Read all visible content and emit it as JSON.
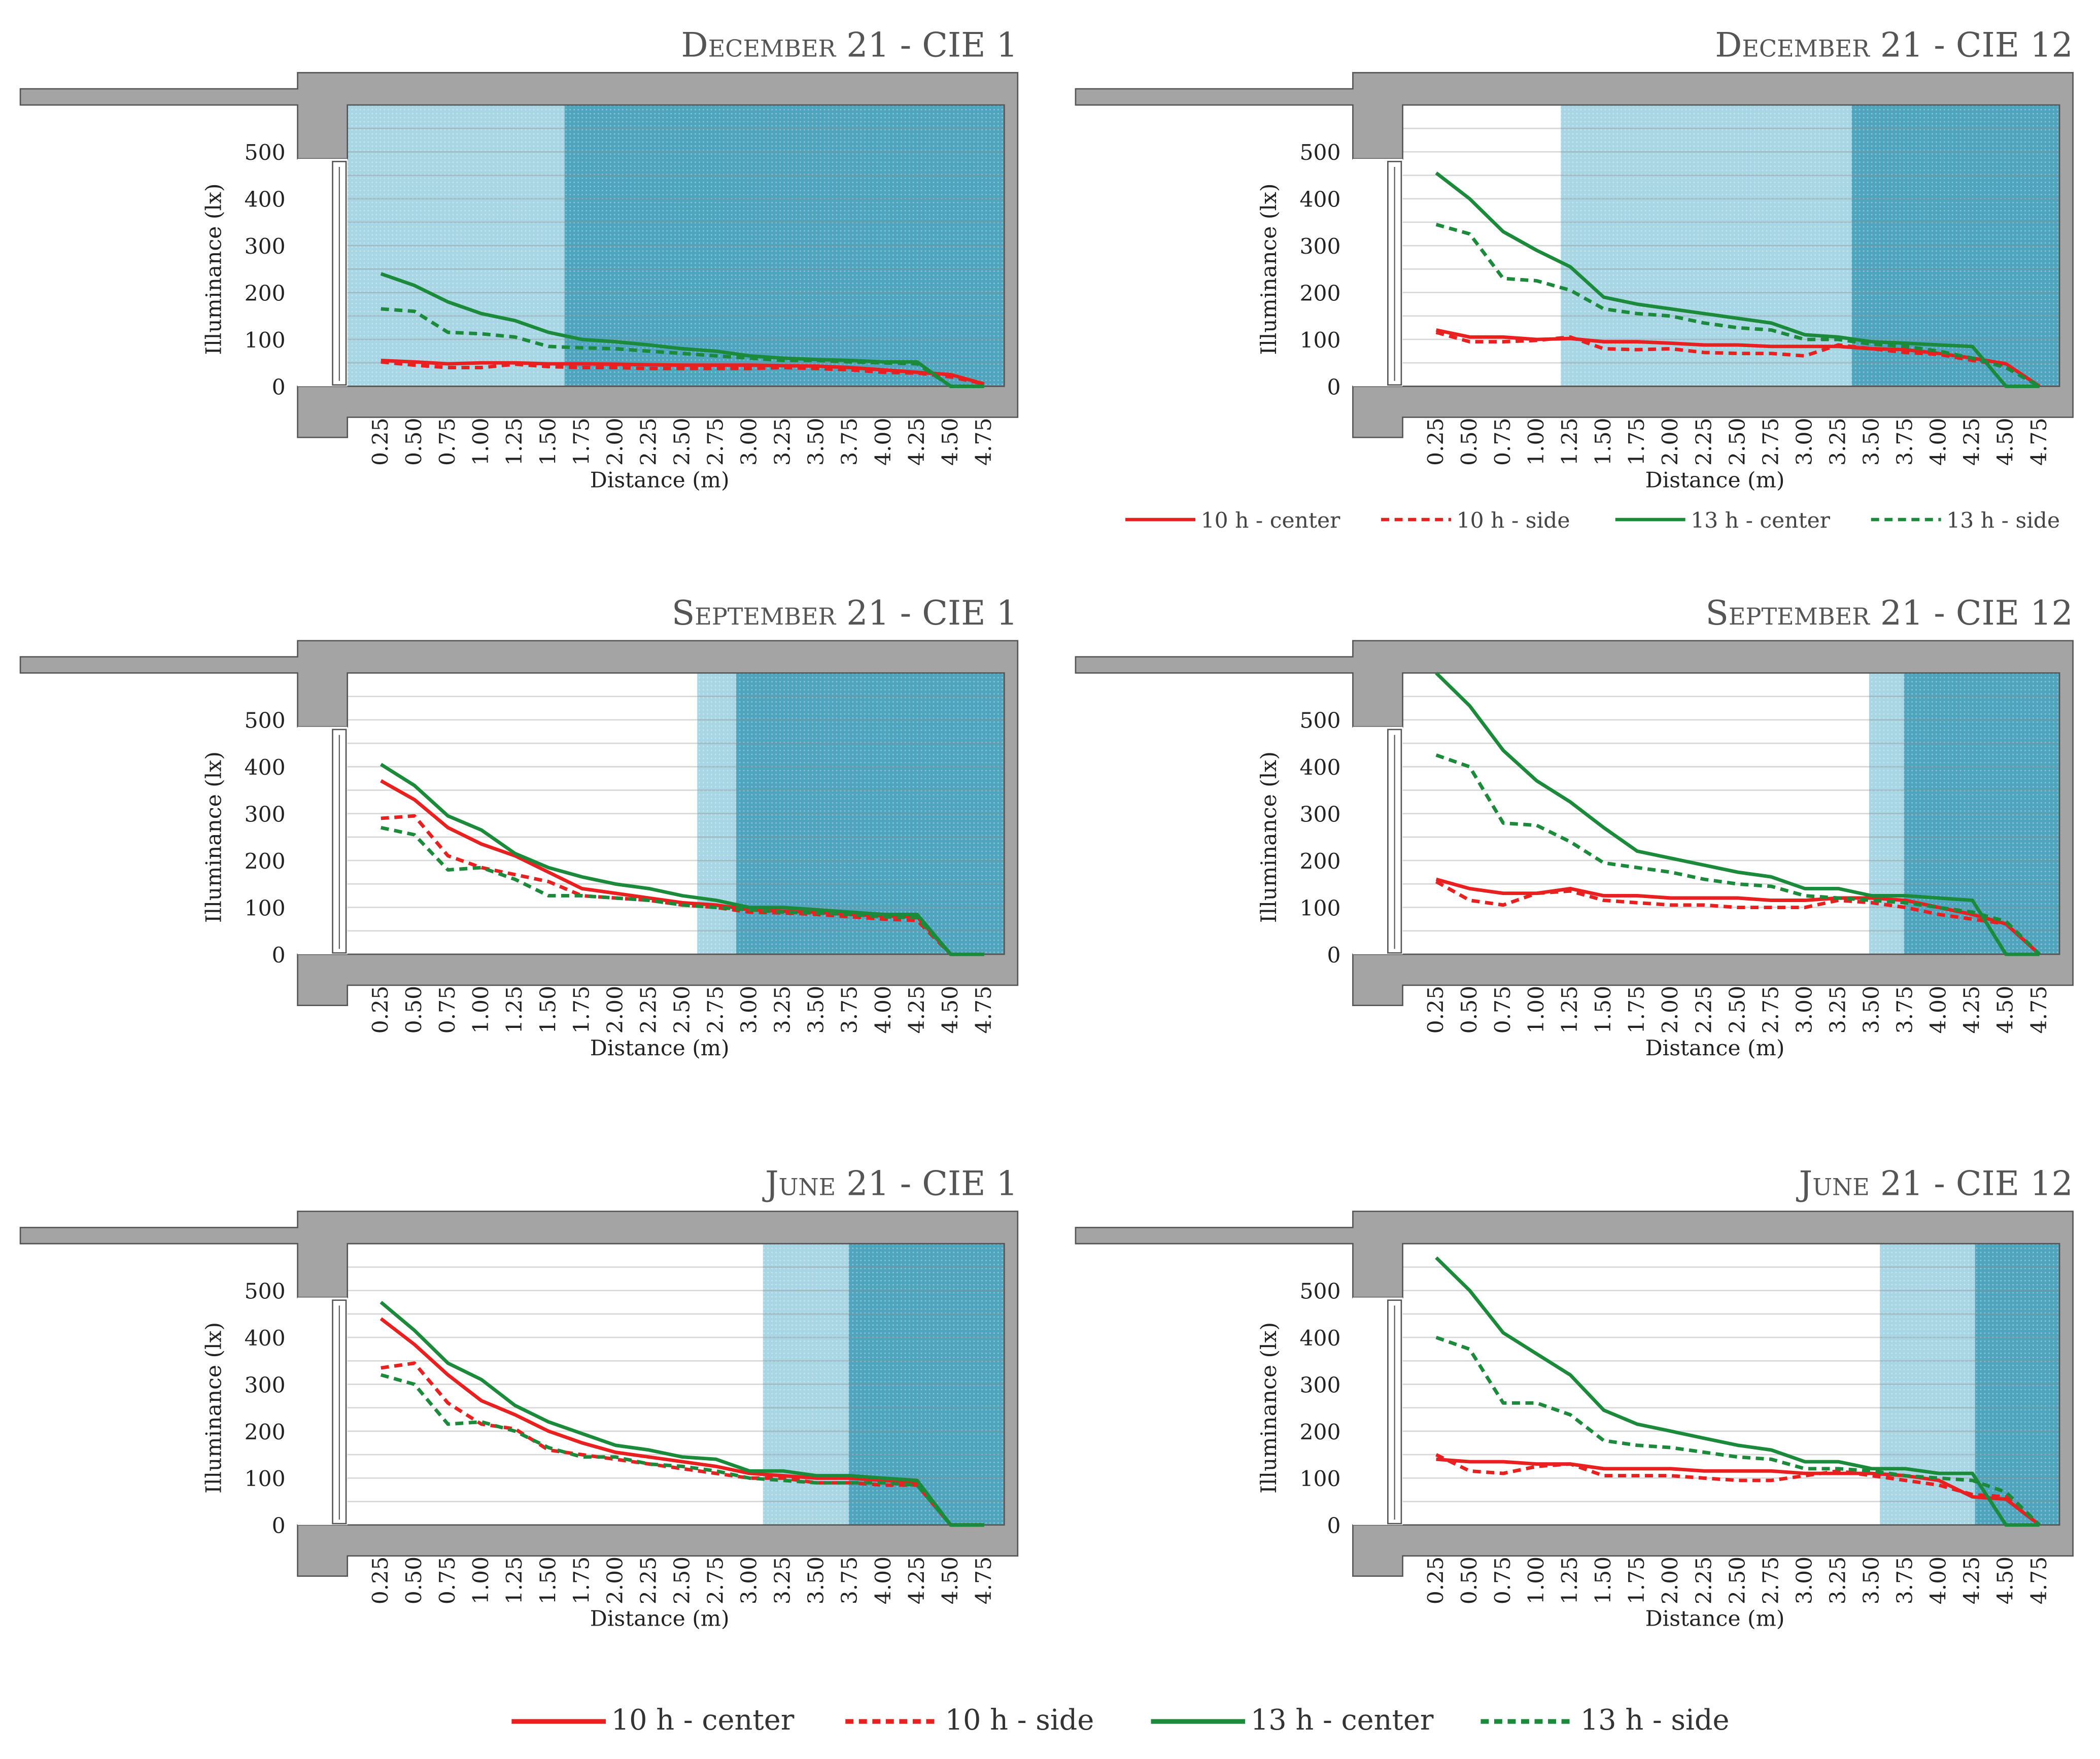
{
  "colors": {
    "red": "#e8201f",
    "green": "#1b8a3a",
    "wall": "#a4a4a4",
    "light_patch": "#a9d6e4",
    "dark_patch": "#4fa5be"
  },
  "legend": [
    {
      "label": "10 h - center",
      "color": "#e8201f",
      "dash": false
    },
    {
      "label": "10 h - side",
      "color": "#e8201f",
      "dash": true
    },
    {
      "label": "13 h - center",
      "color": "#1b8a3a",
      "dash": false
    },
    {
      "label": "13 h - side",
      "color": "#1b8a3a",
      "dash": true
    }
  ],
  "chart_data": [
    {
      "type": "line",
      "title": "December 21 - CIE 1",
      "xlabel": "Distance (m)",
      "ylabel": "Illuminance (lx)",
      "x": [
        0.25,
        0.5,
        0.75,
        1.0,
        1.25,
        1.5,
        1.75,
        2.0,
        2.25,
        2.5,
        2.75,
        3.0,
        3.25,
        3.5,
        3.75,
        4.0,
        4.25,
        4.5,
        4.75
      ],
      "x_tick_labels": [
        "0.25",
        "0.50",
        "0.75",
        "1.00",
        "1.25",
        "1.50",
        "1.75",
        "2.00",
        "2.25",
        "2.50",
        "2.75",
        "3.00",
        "3.25",
        "3.50",
        "3.75",
        "4.00",
        "4.25",
        "4.50",
        "4.75"
      ],
      "y_ticks": [
        "0",
        "100",
        "200",
        "300",
        "400",
        "500"
      ],
      "ylim": [
        0,
        600
      ],
      "sun_light_m": [
        0,
        1.62
      ],
      "sun_dark_m": [
        1.62,
        4.9
      ],
      "series": [
        {
          "name": "10 h - center",
          "values": [
            55,
            52,
            48,
            50,
            50,
            48,
            48,
            47,
            46,
            45,
            45,
            45,
            44,
            43,
            40,
            35,
            30,
            25,
            5
          ]
        },
        {
          "name": "10 h - side",
          "values": [
            52,
            45,
            40,
            40,
            47,
            42,
            40,
            40,
            38,
            38,
            38,
            38,
            40,
            38,
            35,
            30,
            28,
            20,
            5
          ]
        },
        {
          "name": "13 h - center",
          "values": [
            240,
            215,
            180,
            155,
            140,
            115,
            100,
            95,
            88,
            80,
            75,
            65,
            60,
            57,
            55,
            52,
            52,
            0,
            0
          ]
        },
        {
          "name": "13 h - side",
          "values": [
            165,
            160,
            115,
            112,
            105,
            85,
            82,
            80,
            75,
            70,
            65,
            60,
            55,
            55,
            52,
            50,
            48,
            0,
            0
          ]
        }
      ]
    },
    {
      "type": "line",
      "title": "December 21 - CIE 12",
      "xlabel": "Distance (m)",
      "ylabel": "Illuminance (lx)",
      "x": [
        0.25,
        0.5,
        0.75,
        1.0,
        1.25,
        1.5,
        1.75,
        2.0,
        2.25,
        2.5,
        2.75,
        3.0,
        3.25,
        3.5,
        3.75,
        4.0,
        4.25,
        4.5,
        4.75
      ],
      "x_tick_labels": [
        "0.25",
        "0.50",
        "0.75",
        "1.00",
        "1.25",
        "1.50",
        "1.75",
        "2.00",
        "2.25",
        "2.50",
        "2.75",
        "3.00",
        "3.25",
        "3.50",
        "3.75",
        "4.00",
        "4.25",
        "4.50",
        "4.75"
      ],
      "y_ticks": [
        "0",
        "100",
        "200",
        "300",
        "400",
        "500"
      ],
      "ylim": [
        0,
        600
      ],
      "sun_light_m": [
        1.18,
        3.35
      ],
      "sun_dark_m": [
        3.35,
        4.9
      ],
      "series": [
        {
          "name": "10 h - center",
          "values": [
            120,
            105,
            105,
            100,
            102,
            95,
            95,
            92,
            88,
            88,
            85,
            85,
            85,
            80,
            78,
            70,
            60,
            48,
            0
          ]
        },
        {
          "name": "10 h - side",
          "values": [
            115,
            95,
            95,
            98,
            105,
            80,
            78,
            80,
            72,
            70,
            70,
            65,
            88,
            80,
            72,
            68,
            55,
            45,
            0
          ]
        },
        {
          "name": "13 h - center",
          "values": [
            455,
            400,
            330,
            290,
            255,
            190,
            175,
            165,
            155,
            145,
            135,
            110,
            105,
            95,
            92,
            88,
            85,
            0,
            0
          ]
        },
        {
          "name": "13 h - side",
          "values": [
            345,
            325,
            230,
            225,
            205,
            165,
            155,
            150,
            135,
            125,
            120,
            100,
            100,
            90,
            85,
            75,
            60,
            40,
            0
          ]
        }
      ]
    },
    {
      "type": "line",
      "title": "September 21 - CIE 1",
      "xlabel": "Distance (m)",
      "ylabel": "Illuminance (lx)",
      "x": [
        0.25,
        0.5,
        0.75,
        1.0,
        1.25,
        1.5,
        1.75,
        2.0,
        2.25,
        2.5,
        2.75,
        3.0,
        3.25,
        3.5,
        3.75,
        4.0,
        4.25,
        4.5,
        4.75
      ],
      "x_tick_labels": [
        "0.25",
        "0.50",
        "0.75",
        "1.00",
        "1.25",
        "1.50",
        "1.75",
        "2.00",
        "2.25",
        "2.50",
        "2.75",
        "3.00",
        "3.25",
        "3.50",
        "3.75",
        "4.00",
        "4.25",
        "4.50",
        "4.75"
      ],
      "y_ticks": [
        "0",
        "100",
        "200",
        "300",
        "400",
        "500"
      ],
      "ylim": [
        0,
        600
      ],
      "sun_light_m": [
        2.61,
        2.9
      ],
      "sun_dark_m": [
        2.9,
        4.9
      ],
      "series": [
        {
          "name": "10 h - center",
          "values": [
            370,
            330,
            270,
            235,
            210,
            175,
            140,
            130,
            120,
            110,
            105,
            95,
            92,
            90,
            85,
            82,
            80,
            0,
            0
          ]
        },
        {
          "name": "10 h - side",
          "values": [
            290,
            295,
            210,
            185,
            170,
            155,
            125,
            120,
            115,
            105,
            100,
            90,
            88,
            85,
            80,
            75,
            72,
            0,
            0
          ]
        },
        {
          "name": "13 h - center",
          "values": [
            405,
            360,
            295,
            265,
            215,
            185,
            165,
            150,
            140,
            125,
            115,
            100,
            100,
            95,
            90,
            85,
            85,
            0,
            0
          ]
        },
        {
          "name": "13 h - side",
          "values": [
            270,
            255,
            180,
            185,
            160,
            125,
            125,
            120,
            115,
            105,
            100,
            95,
            90,
            88,
            85,
            80,
            78,
            0,
            0
          ]
        }
      ]
    },
    {
      "type": "line",
      "title": "September 21 - CIE 12",
      "xlabel": "Distance (m)",
      "ylabel": "Illuminance (lx)",
      "x": [
        0.25,
        0.5,
        0.75,
        1.0,
        1.25,
        1.5,
        1.75,
        2.0,
        2.25,
        2.5,
        2.75,
        3.0,
        3.25,
        3.5,
        3.75,
        4.0,
        4.25,
        4.5,
        4.75
      ],
      "x_tick_labels": [
        "0.25",
        "0.50",
        "0.75",
        "1.00",
        "1.25",
        "1.50",
        "1.75",
        "2.00",
        "2.25",
        "2.50",
        "2.75",
        "3.00",
        "3.25",
        "3.50",
        "3.75",
        "4.00",
        "4.25",
        "4.50",
        "4.75"
      ],
      "y_ticks": [
        "0",
        "100",
        "200",
        "300",
        "400",
        "500"
      ],
      "ylim": [
        0,
        600
      ],
      "sun_light_m": [
        3.48,
        3.74
      ],
      "sun_dark_m": [
        3.74,
        4.9
      ],
      "series": [
        {
          "name": "10 h - center",
          "values": [
            160,
            140,
            130,
            130,
            140,
            125,
            125,
            120,
            120,
            120,
            115,
            115,
            120,
            120,
            115,
            100,
            85,
            65,
            0
          ]
        },
        {
          "name": "10 h - side",
          "values": [
            155,
            115,
            105,
            130,
            135,
            115,
            110,
            105,
            105,
            100,
            100,
            100,
            115,
            110,
            100,
            85,
            75,
            65,
            0
          ]
        },
        {
          "name": "13 h - center",
          "values": [
            600,
            530,
            435,
            370,
            325,
            270,
            220,
            205,
            190,
            175,
            165,
            140,
            140,
            125,
            125,
            120,
            115,
            0,
            0
          ]
        },
        {
          "name": "13 h - side",
          "values": [
            425,
            400,
            280,
            275,
            240,
            195,
            185,
            175,
            160,
            150,
            145,
            125,
            120,
            115,
            110,
            100,
            90,
            70,
            0
          ]
        }
      ]
    },
    {
      "type": "line",
      "title": "June 21 - CIE 1",
      "xlabel": "Distance (m)",
      "ylabel": "Illuminance (lx)",
      "x": [
        0.25,
        0.5,
        0.75,
        1.0,
        1.25,
        1.5,
        1.75,
        2.0,
        2.25,
        2.5,
        2.75,
        3.0,
        3.25,
        3.5,
        3.75,
        4.0,
        4.25,
        4.5,
        4.75
      ],
      "x_tick_labels": [
        "0.25",
        "0.50",
        "0.75",
        "1.00",
        "1.25",
        "1.50",
        "1.75",
        "2.00",
        "2.25",
        "2.50",
        "2.75",
        "3.00",
        "3.25",
        "3.50",
        "3.75",
        "4.00",
        "4.25",
        "4.50",
        "4.75"
      ],
      "y_ticks": [
        "0",
        "100",
        "200",
        "300",
        "400",
        "500"
      ],
      "ylim": [
        0,
        600
      ],
      "sun_light_m": [
        3.1,
        3.74
      ],
      "sun_dark_m": [
        3.74,
        4.9
      ],
      "series": [
        {
          "name": "10 h - center",
          "values": [
            440,
            385,
            320,
            265,
            235,
            200,
            175,
            155,
            145,
            135,
            125,
            110,
            105,
            100,
            100,
            95,
            90,
            0,
            0
          ]
        },
        {
          "name": "10 h - side",
          "values": [
            335,
            345,
            260,
            215,
            205,
            160,
            150,
            140,
            130,
            120,
            110,
            100,
            100,
            90,
            90,
            85,
            85,
            0,
            0
          ]
        },
        {
          "name": "13 h - center",
          "values": [
            475,
            415,
            345,
            310,
            255,
            220,
            195,
            170,
            160,
            145,
            140,
            115,
            115,
            105,
            105,
            100,
            95,
            0,
            0
          ]
        },
        {
          "name": "13 h - side",
          "values": [
            320,
            300,
            215,
            220,
            200,
            165,
            145,
            145,
            130,
            125,
            115,
            100,
            95,
            90,
            90,
            90,
            85,
            0,
            0
          ]
        }
      ]
    },
    {
      "type": "line",
      "title": "June 21 - CIE 12",
      "xlabel": "Distance (m)",
      "ylabel": "Illuminance (lx)",
      "x": [
        0.25,
        0.5,
        0.75,
        1.0,
        1.25,
        1.5,
        1.75,
        2.0,
        2.25,
        2.5,
        2.75,
        3.0,
        3.25,
        3.5,
        3.75,
        4.0,
        4.25,
        4.5,
        4.75
      ],
      "x_tick_labels": [
        "0.25",
        "0.50",
        "0.75",
        "1.00",
        "1.25",
        "1.50",
        "1.75",
        "2.00",
        "2.25",
        "2.50",
        "2.75",
        "3.00",
        "3.25",
        "3.50",
        "3.75",
        "4.00",
        "4.25",
        "4.50",
        "4.75"
      ],
      "y_ticks": [
        "0",
        "100",
        "200",
        "300",
        "400",
        "500"
      ],
      "ylim": [
        0,
        600
      ],
      "sun_light_m": [
        3.56,
        4.27
      ],
      "sun_dark_m": [
        4.27,
        4.9
      ],
      "series": [
        {
          "name": "10 h - center",
          "values": [
            140,
            135,
            135,
            130,
            130,
            120,
            120,
            120,
            115,
            115,
            115,
            110,
            110,
            110,
            105,
            95,
            60,
            55,
            0
          ]
        },
        {
          "name": "10 h - side",
          "values": [
            150,
            115,
            110,
            125,
            130,
            105,
            105,
            105,
            100,
            95,
            95,
            105,
            115,
            105,
            95,
            85,
            65,
            60,
            0
          ]
        },
        {
          "name": "13 h - center",
          "values": [
            570,
            500,
            410,
            365,
            320,
            245,
            215,
            200,
            185,
            170,
            160,
            135,
            135,
            120,
            120,
            110,
            110,
            0,
            0
          ]
        },
        {
          "name": "13 h - side",
          "values": [
            400,
            375,
            260,
            260,
            235,
            180,
            170,
            165,
            155,
            145,
            140,
            120,
            120,
            115,
            105,
            100,
            95,
            70,
            0
          ]
        }
      ]
    }
  ]
}
